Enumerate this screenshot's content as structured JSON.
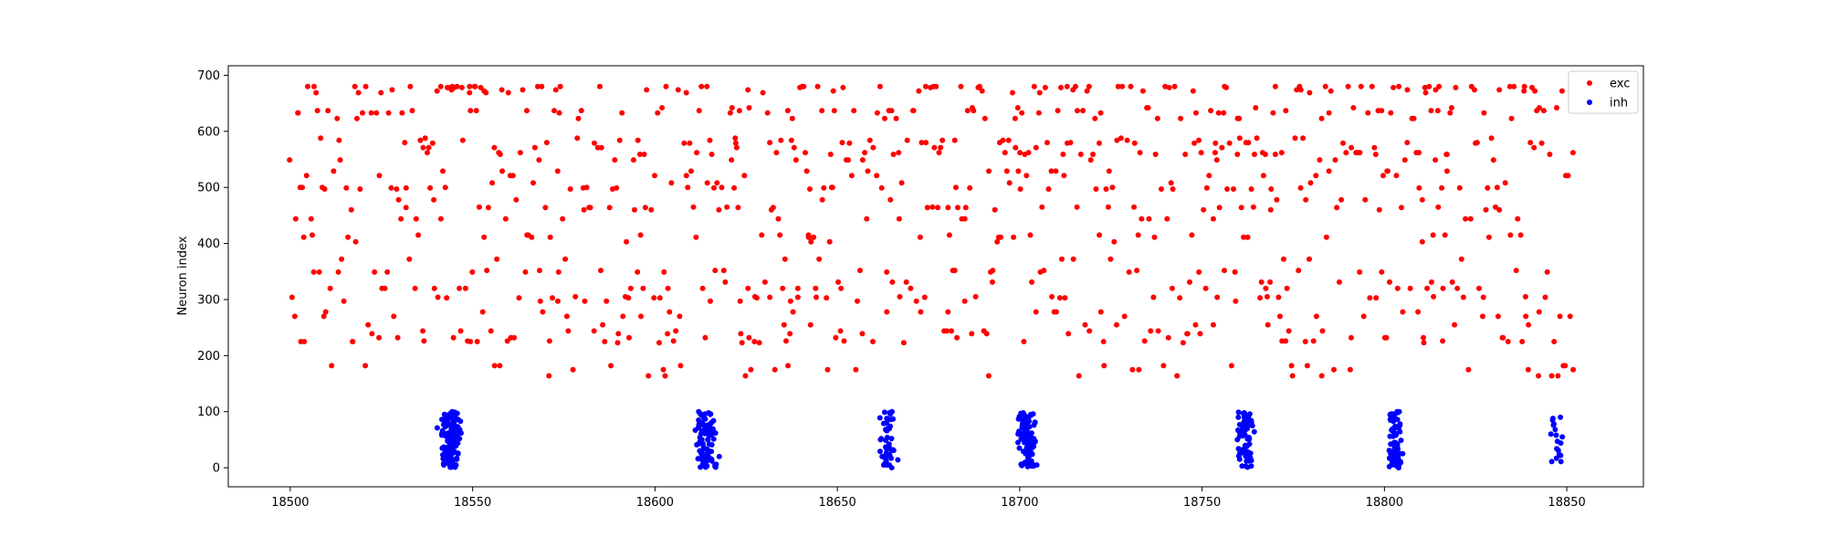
{
  "chart_data": {
    "type": "scatter",
    "title": "",
    "xlabel": "",
    "ylabel": "Neuron index",
    "xlim": [
      18483,
      18871
    ],
    "ylim": [
      -34,
      717
    ],
    "xticks": [
      18500,
      18550,
      18600,
      18650,
      18700,
      18750,
      18800,
      18850
    ],
    "yticks": [
      0,
      100,
      200,
      300,
      400,
      500,
      600,
      700
    ],
    "grid": false,
    "legend": "top-right",
    "series": [
      {
        "name": "exc",
        "color": "#ff0000",
        "x_range": [
          18500,
          18852
        ],
        "y_range": [
          158,
          684
        ],
        "pattern": "asynchronous-irregular"
      },
      {
        "name": "inh",
        "color": "#0000ff",
        "pattern": "bursts",
        "y_range": [
          0,
          100
        ],
        "bursts": [
          {
            "center": 18544,
            "width": 4,
            "count": 140
          },
          {
            "center": 18614,
            "width": 4,
            "count": 90
          },
          {
            "center": 18664,
            "width": 3,
            "count": 50
          },
          {
            "center": 18702,
            "width": 4,
            "count": 110
          },
          {
            "center": 18762,
            "width": 4,
            "count": 65
          },
          {
            "center": 18803,
            "width": 3,
            "count": 75
          },
          {
            "center": 18847,
            "width": 3,
            "count": 18
          }
        ]
      }
    ]
  }
}
